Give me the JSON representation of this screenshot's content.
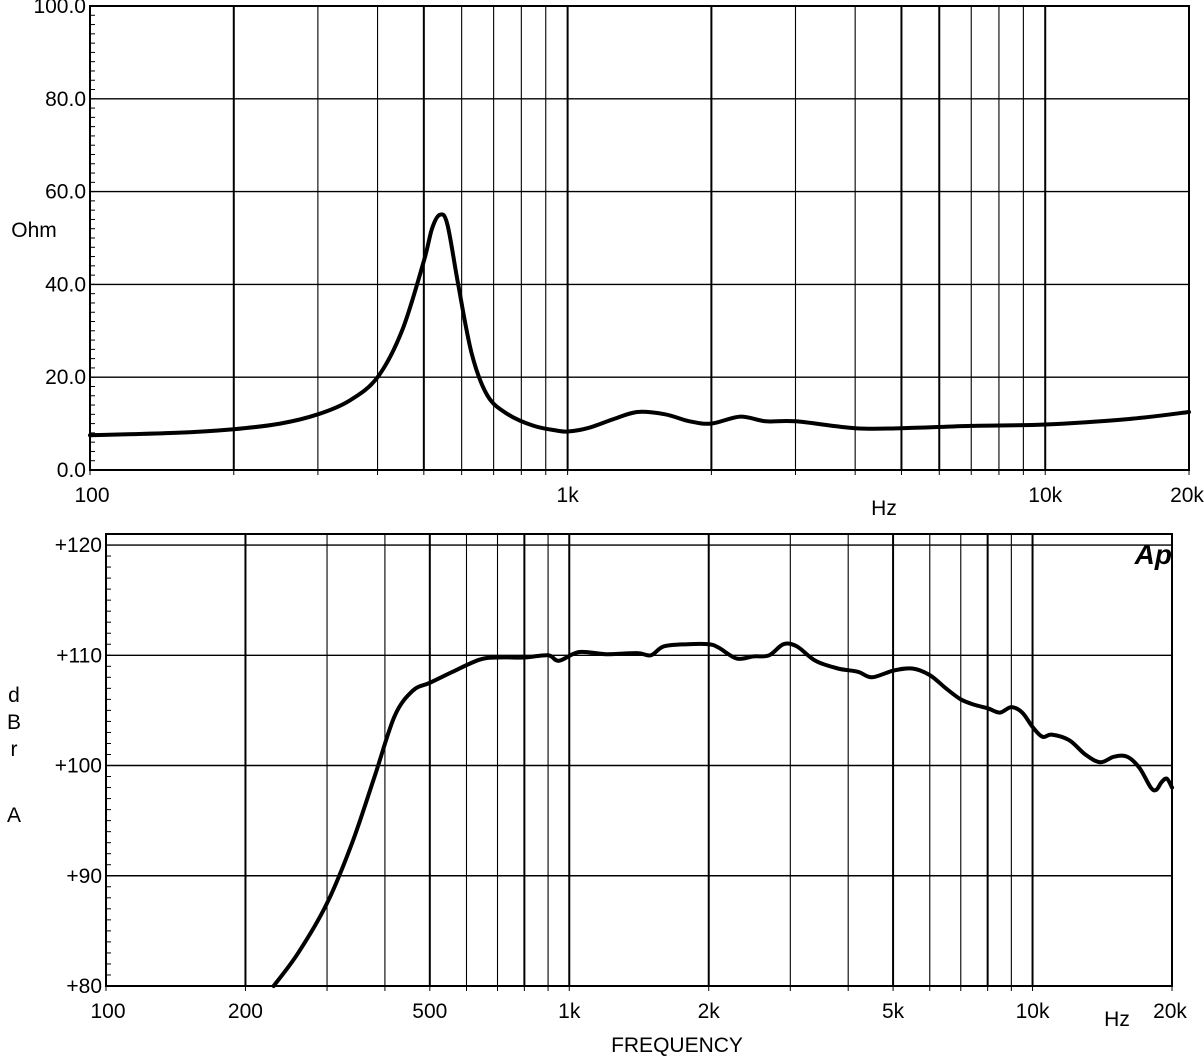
{
  "chart_data": [
    {
      "type": "line",
      "title": "",
      "xlabel": "Hz",
      "ylabel": "Ohm",
      "x_scale": "log",
      "xlim": [
        100,
        20000
      ],
      "ylim": [
        0,
        100
      ],
      "grid": true,
      "x_tick_labels": [
        "100",
        "1k",
        "10k",
        "20k"
      ],
      "x_tick_values": [
        100,
        1000,
        10000,
        20000
      ],
      "y_tick_labels": [
        "0.0",
        "20.0",
        "40.0",
        "60.0",
        "80.0",
        "100.0"
      ],
      "y_tick_values": [
        0,
        20,
        40,
        60,
        80,
        100
      ],
      "series": [
        {
          "points": [
            [
              100,
              7.5
            ],
            [
              150,
              8.0
            ],
            [
              200,
              8.8
            ],
            [
              250,
              10.0
            ],
            [
              300,
              12.0
            ],
            [
              350,
              15.0
            ],
            [
              400,
              20.0
            ],
            [
              450,
              30.0
            ],
            [
              500,
              45.0
            ],
            [
              520,
              52.0
            ],
            [
              540,
              55.0
            ],
            [
              560,
              53.0
            ],
            [
              590,
              40.0
            ],
            [
              630,
              25.0
            ],
            [
              680,
              16.0
            ],
            [
              750,
              12.0
            ],
            [
              850,
              9.5
            ],
            [
              950,
              8.5
            ],
            [
              1000,
              8.3
            ],
            [
              1100,
              9.0
            ],
            [
              1250,
              11.0
            ],
            [
              1400,
              12.5
            ],
            [
              1600,
              12.0
            ],
            [
              1800,
              10.5
            ],
            [
              2000,
              10.0
            ],
            [
              2300,
              11.5
            ],
            [
              2600,
              10.5
            ],
            [
              3000,
              10.5
            ],
            [
              4000,
              9.0
            ],
            [
              5000,
              9.0
            ],
            [
              7000,
              9.5
            ],
            [
              10000,
              9.8
            ],
            [
              15000,
              11.0
            ],
            [
              20000,
              12.5
            ]
          ]
        }
      ]
    },
    {
      "type": "line",
      "title": "",
      "xlabel": "FREQUENCY",
      "x_unit": "Hz",
      "ylabel_lines": [
        "d",
        "B",
        "r",
        "A"
      ],
      "x_scale": "log",
      "xlim": [
        100,
        20000
      ],
      "ylim": [
        80,
        121
      ],
      "grid": true,
      "logo": "Ap",
      "x_tick_labels": [
        "100",
        "200",
        "500",
        "1k",
        "2k",
        "5k",
        "10k",
        "20k"
      ],
      "x_tick_values": [
        100,
        200,
        500,
        1000,
        2000,
        5000,
        10000,
        20000
      ],
      "y_tick_labels": [
        "+80",
        "+90",
        "+100",
        "+110",
        "+120"
      ],
      "y_tick_values": [
        80,
        90,
        100,
        110,
        120
      ],
      "series": [
        {
          "points": [
            [
              230,
              80.0
            ],
            [
              260,
              83.0
            ],
            [
              300,
              87.5
            ],
            [
              340,
              93.0
            ],
            [
              380,
              99.0
            ],
            [
              420,
              104.5
            ],
            [
              460,
              106.8
            ],
            [
              500,
              107.5
            ],
            [
              560,
              108.5
            ],
            [
              640,
              109.6
            ],
            [
              700,
              109.8
            ],
            [
              800,
              109.8
            ],
            [
              900,
              110.0
            ],
            [
              950,
              109.5
            ],
            [
              1050,
              110.3
            ],
            [
              1200,
              110.1
            ],
            [
              1400,
              110.2
            ],
            [
              1500,
              110.0
            ],
            [
              1600,
              110.8
            ],
            [
              1800,
              111.0
            ],
            [
              2000,
              111.0
            ],
            [
              2100,
              110.7
            ],
            [
              2300,
              109.7
            ],
            [
              2500,
              109.9
            ],
            [
              2700,
              110.0
            ],
            [
              2900,
              111.0
            ],
            [
              3100,
              110.8
            ],
            [
              3400,
              109.5
            ],
            [
              3800,
              108.8
            ],
            [
              4200,
              108.5
            ],
            [
              4500,
              108.0
            ],
            [
              5000,
              108.6
            ],
            [
              5500,
              108.8
            ],
            [
              6000,
              108.2
            ],
            [
              6500,
              107.0
            ],
            [
              7000,
              106.0
            ],
            [
              7500,
              105.5
            ],
            [
              8000,
              105.2
            ],
            [
              8500,
              104.8
            ],
            [
              9000,
              105.3
            ],
            [
              9500,
              104.8
            ],
            [
              10000,
              103.5
            ],
            [
              10500,
              102.6
            ],
            [
              11000,
              102.8
            ],
            [
              12000,
              102.3
            ],
            [
              13000,
              101.0
            ],
            [
              14000,
              100.3
            ],
            [
              15000,
              100.8
            ],
            [
              16000,
              100.8
            ],
            [
              17000,
              99.8
            ],
            [
              18000,
              98.0
            ],
            [
              18500,
              97.8
            ],
            [
              19000,
              98.5
            ],
            [
              19500,
              98.8
            ],
            [
              20000,
              98.0
            ]
          ]
        }
      ]
    }
  ]
}
